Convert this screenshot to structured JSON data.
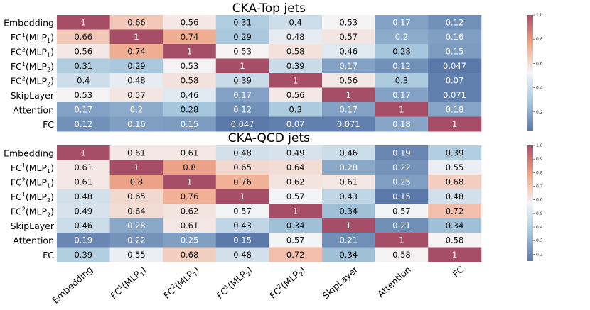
{
  "chart_data": [
    {
      "type": "heatmap",
      "title": "CKA-Top jets",
      "row_labels": [
        "Embedding",
        "FC¹(MLP₁)",
        "FC²(MLP₁)",
        "FC¹(MLP₂)",
        "FC²(MLP₂)",
        "SkipLayer",
        "Attention",
        "FC"
      ],
      "col_labels": [],
      "values": [
        [
          "1",
          "0.66",
          "0.56",
          "0.31",
          "0.4",
          "0.53",
          "0.17",
          "0.12"
        ],
        [
          "0.66",
          "1",
          "0.74",
          "0.29",
          "0.48",
          "0.57",
          "0.2",
          "0.16"
        ],
        [
          "0.56",
          "0.74",
          "1",
          "0.53",
          "0.58",
          "0.46",
          "0.28",
          "0.15"
        ],
        [
          "0.31",
          "0.29",
          "0.53",
          "1",
          "0.39",
          "0.17",
          "0.12",
          "0.047"
        ],
        [
          "0.4",
          "0.48",
          "0.58",
          "0.39",
          "1",
          "0.56",
          "0.3",
          "0.07"
        ],
        [
          "0.53",
          "0.57",
          "0.46",
          "0.17",
          "0.56",
          "1",
          "0.17",
          "0.071"
        ],
        [
          "0.17",
          "0.2",
          "0.28",
          "0.12",
          "0.3",
          "0.17",
          "1",
          "0.18"
        ],
        [
          "0.12",
          "0.16",
          "0.15",
          "0.047",
          "0.07",
          "0.071",
          "0.18",
          "1"
        ]
      ],
      "colorbar_range": [
        0.047,
        1.0
      ],
      "colorbar_ticks": [
        "0.2",
        "0.4",
        "0.6",
        "0.8",
        "1.0"
      ],
      "colormap": "RdBu_r"
    },
    {
      "type": "heatmap",
      "title": "CKA-QCD jets",
      "row_labels": [
        "Embedding",
        "FC¹(MLP₁)",
        "FC²(MLP₁)",
        "FC¹(MLP₂)",
        "FC²(MLP₂)",
        "SkipLayer",
        "Attention",
        "FC"
      ],
      "col_labels": [
        "Embedding",
        "FC¹(MLP₁)",
        "FC²(MLP₁)",
        "FC¹(MLP₂)",
        "FC²(MLP₂)",
        "SkipLayer",
        "Attention",
        "FC"
      ],
      "values": [
        [
          "1",
          "0.61",
          "0.61",
          "0.48",
          "0.49",
          "0.46",
          "0.19",
          "0.39"
        ],
        [
          "0.61",
          "1",
          "0.8",
          "0.65",
          "0.64",
          "0.28",
          "0.22",
          "0.55"
        ],
        [
          "0.61",
          "0.8",
          "1",
          "0.76",
          "0.62",
          "0.61",
          "0.25",
          "0.68"
        ],
        [
          "0.48",
          "0.65",
          "0.76",
          "1",
          "0.57",
          "0.43",
          "0.15",
          "0.48"
        ],
        [
          "0.49",
          "0.64",
          "0.62",
          "0.57",
          "1",
          "0.34",
          "0.57",
          "0.72"
        ],
        [
          "0.46",
          "0.28",
          "0.61",
          "0.43",
          "0.34",
          "1",
          "0.21",
          "0.34"
        ],
        [
          "0.19",
          "0.22",
          "0.25",
          "0.15",
          "0.57",
          "0.21",
          "1",
          "0.58"
        ],
        [
          "0.39",
          "0.55",
          "0.68",
          "0.48",
          "0.72",
          "0.34",
          "0.58",
          "1"
        ]
      ],
      "colorbar_range": [
        0.15,
        1.0
      ],
      "colorbar_ticks": [
        "0.2",
        "0.3",
        "0.4",
        "0.5",
        "0.6",
        "0.7",
        "0.8",
        "0.9",
        "1.0"
      ],
      "colormap": "RdBu_r"
    }
  ]
}
